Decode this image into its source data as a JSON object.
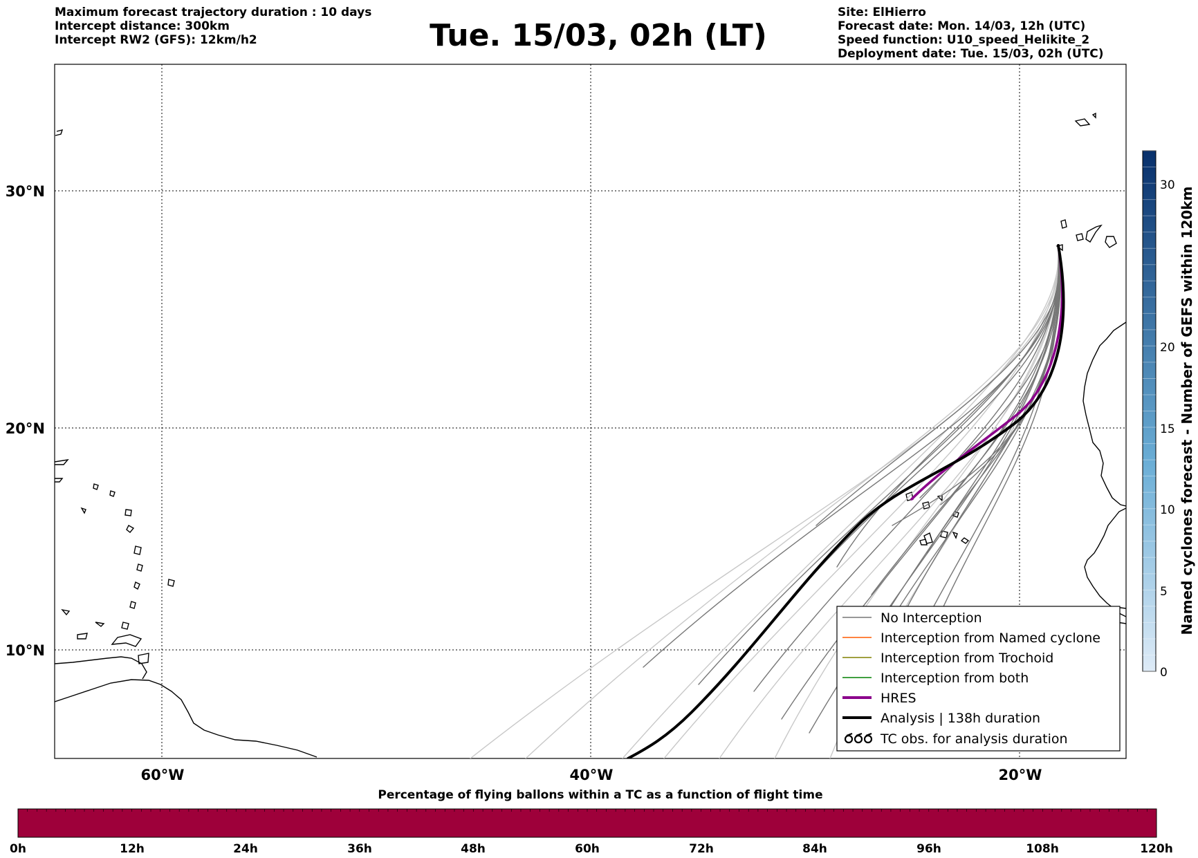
{
  "header": {
    "left_lines": [
      "Maximum forecast trajectory duration : 10 days",
      "Intercept distance: 300km",
      "Intercept RW2 (GFS):  12km/h2"
    ],
    "title": "Tue. 15/03, 02h (LT)",
    "right_lines": [
      "Site: ElHierro",
      "Forecast date: Mon. 14/03, 12h (UTC)",
      "Speed function: U10_speed_Helikite_2",
      "Deployment date: Tue. 15/03, 02h (UTC)"
    ]
  },
  "map": {
    "lat_labels": [
      "30°N",
      "20°N",
      "10°N"
    ],
    "lon_labels": [
      "60°W",
      "40°W",
      "20°W"
    ],
    "grid": "dotted",
    "colors": {
      "no_interception": "#777777",
      "named_cyclone": "#ff5a00",
      "trochoid": "#808000",
      "both": "#008000",
      "hres": "#8b008b",
      "analysis": "#000000"
    }
  },
  "legend": {
    "items": [
      {
        "label": "No Interception",
        "color": "#777777",
        "style": "thin"
      },
      {
        "label": "Interception from Named cyclone",
        "color": "#ff5a00",
        "style": "thin"
      },
      {
        "label": "Interception from Trochoid",
        "color": "#808000",
        "style": "thin"
      },
      {
        "label": "Interception from both",
        "color": "#008000",
        "style": "thin"
      },
      {
        "label": "HRES",
        "color": "#8b008b",
        "style": "thick"
      },
      {
        "label": "Analysis | 138h duration",
        "color": "#000000",
        "style": "thick"
      },
      {
        "label": "TC obs. for analysis duration",
        "color": "#000000",
        "style": "symbol"
      }
    ]
  },
  "colorbar_right": {
    "label": "Named cyclones forecast - Number of GEFS within 120km",
    "ticks": [
      "0",
      "5",
      "10",
      "15",
      "20",
      "30"
    ],
    "colors": {
      "low": "#deebf7",
      "high": "#08306b"
    }
  },
  "colorbar_bottom": {
    "title": "Percentage of flying ballons within a TC as a function of flight time",
    "ticks": [
      "0h",
      "12h",
      "24h",
      "36h",
      "48h",
      "60h",
      "72h",
      "84h",
      "96h",
      "108h",
      "120h"
    ],
    "fill_color": "#9e003a"
  }
}
